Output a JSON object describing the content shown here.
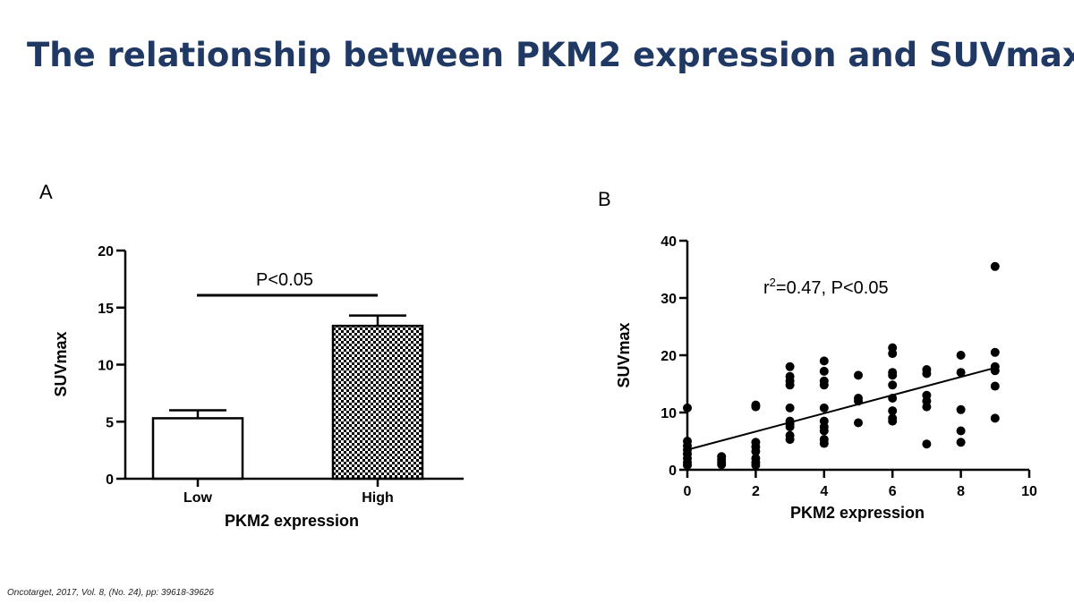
{
  "slide": {
    "title": "The relationship between PKM2 expression and SUVmax",
    "citation": "Oncotarget, 2017, Vol. 8, (No. 24), pp: 39618-39626"
  },
  "colors": {
    "title": "#1f3864",
    "ink": "#000000"
  },
  "chart_data": [
    {
      "panel": "A",
      "type": "bar",
      "categories": [
        "Low",
        "High"
      ],
      "values": [
        5.3,
        13.4
      ],
      "error_upper": [
        6.0,
        14.3
      ],
      "bar_fill": [
        "white",
        "checkerboard"
      ],
      "xlabel": "PKM2 expression",
      "ylabel": "SUVmax",
      "ylim": [
        0,
        20
      ],
      "yticks": [
        0,
        5,
        10,
        15,
        20
      ],
      "annotation": "P<0.05",
      "grid": false
    },
    {
      "panel": "B",
      "type": "scatter",
      "xlabel": "PKM2 expression",
      "ylabel": "SUVmax",
      "xlim": [
        0,
        10
      ],
      "ylim": [
        0,
        40
      ],
      "xticks": [
        0,
        2,
        4,
        6,
        8,
        10
      ],
      "yticks": [
        0,
        10,
        20,
        30,
        40
      ],
      "annotation_prefix": "r",
      "annotation_sup": "2",
      "annotation_rest": "=0.47, P<0.05",
      "fit_line": {
        "x": [
          0,
          9
        ],
        "y": [
          3.5,
          17.8
        ]
      },
      "grid": false,
      "points": [
        {
          "x": 0,
          "y": 10.8
        },
        {
          "x": 0,
          "y": 5.0
        },
        {
          "x": 0,
          "y": 4.2
        },
        {
          "x": 0,
          "y": 3.5
        },
        {
          "x": 0,
          "y": 2.8
        },
        {
          "x": 0,
          "y": 2.0
        },
        {
          "x": 0,
          "y": 1.3
        },
        {
          "x": 0,
          "y": 0.8
        },
        {
          "x": 1,
          "y": 2.3
        },
        {
          "x": 1,
          "y": 1.8
        },
        {
          "x": 1,
          "y": 1.3
        },
        {
          "x": 1,
          "y": 0.9
        },
        {
          "x": 2,
          "y": 11.3
        },
        {
          "x": 2,
          "y": 11.0
        },
        {
          "x": 2,
          "y": 4.8
        },
        {
          "x": 2,
          "y": 4.0
        },
        {
          "x": 2,
          "y": 3.2
        },
        {
          "x": 2,
          "y": 2.0
        },
        {
          "x": 2,
          "y": 1.3
        },
        {
          "x": 2,
          "y": 0.8
        },
        {
          "x": 3,
          "y": 18.0
        },
        {
          "x": 3,
          "y": 16.3
        },
        {
          "x": 3,
          "y": 15.5
        },
        {
          "x": 3,
          "y": 14.8
        },
        {
          "x": 3,
          "y": 10.8
        },
        {
          "x": 3,
          "y": 8.5
        },
        {
          "x": 3,
          "y": 8.0
        },
        {
          "x": 3,
          "y": 7.5
        },
        {
          "x": 3,
          "y": 6.0
        },
        {
          "x": 3,
          "y": 5.3
        },
        {
          "x": 4,
          "y": 19.0
        },
        {
          "x": 4,
          "y": 17.2
        },
        {
          "x": 4,
          "y": 15.5
        },
        {
          "x": 4,
          "y": 14.8
        },
        {
          "x": 4,
          "y": 10.8
        },
        {
          "x": 4,
          "y": 8.5
        },
        {
          "x": 4,
          "y": 7.5
        },
        {
          "x": 4,
          "y": 6.8
        },
        {
          "x": 4,
          "y": 5.3
        },
        {
          "x": 4,
          "y": 4.6
        },
        {
          "x": 5,
          "y": 16.5
        },
        {
          "x": 5,
          "y": 12.5
        },
        {
          "x": 5,
          "y": 12.0
        },
        {
          "x": 5,
          "y": 8.2
        },
        {
          "x": 6,
          "y": 21.3
        },
        {
          "x": 6,
          "y": 20.3
        },
        {
          "x": 6,
          "y": 17.0
        },
        {
          "x": 6,
          "y": 16.5
        },
        {
          "x": 6,
          "y": 14.8
        },
        {
          "x": 6,
          "y": 12.5
        },
        {
          "x": 6,
          "y": 10.3
        },
        {
          "x": 6,
          "y": 9.0
        },
        {
          "x": 6,
          "y": 8.5
        },
        {
          "x": 7,
          "y": 17.5
        },
        {
          "x": 7,
          "y": 16.8
        },
        {
          "x": 7,
          "y": 13.0
        },
        {
          "x": 7,
          "y": 12.0
        },
        {
          "x": 7,
          "y": 11.0
        },
        {
          "x": 7,
          "y": 4.5
        },
        {
          "x": 8,
          "y": 20.0
        },
        {
          "x": 8,
          "y": 17.0
        },
        {
          "x": 8,
          "y": 10.5
        },
        {
          "x": 8,
          "y": 6.8
        },
        {
          "x": 8,
          "y": 4.8
        },
        {
          "x": 9,
          "y": 35.5
        },
        {
          "x": 9,
          "y": 20.5
        },
        {
          "x": 9,
          "y": 18.0
        },
        {
          "x": 9,
          "y": 17.3
        },
        {
          "x": 9,
          "y": 14.6
        },
        {
          "x": 9,
          "y": 9.0
        }
      ]
    }
  ]
}
